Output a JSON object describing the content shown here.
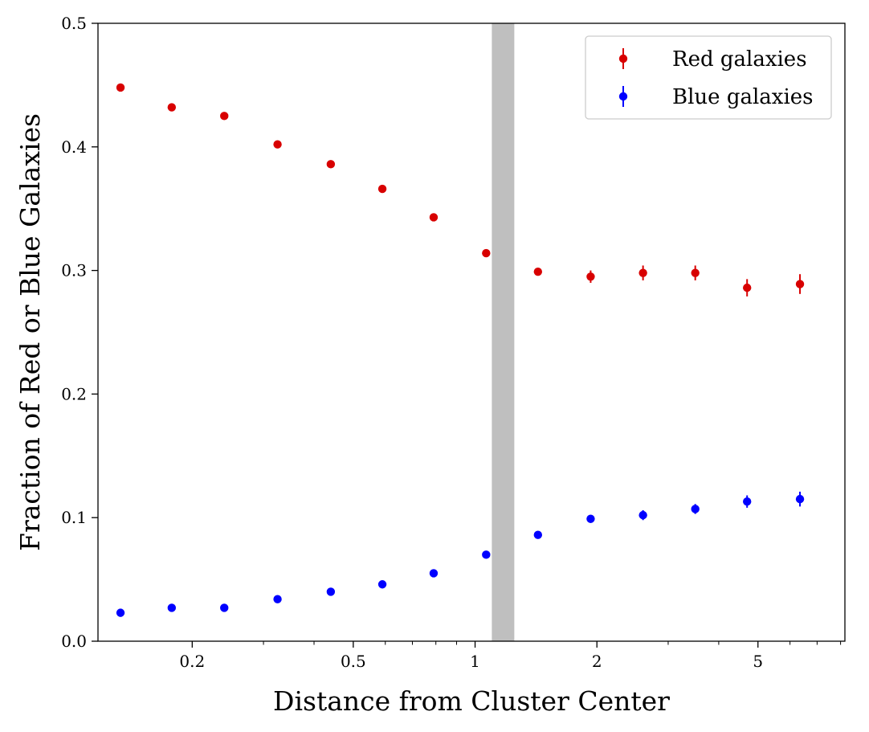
{
  "chart_data": {
    "type": "scatter",
    "title": "",
    "xlabel": "Distance from Cluster Center",
    "ylabel": "Fraction of Red or Blue Galaxies",
    "xscale": "log",
    "xlim": [
      0.117,
      8.2
    ],
    "ylim": [
      0,
      0.5
    ],
    "xticks": [
      {
        "value": 0.2,
        "label": "0.2"
      },
      {
        "value": 0.5,
        "label": "0.5"
      },
      {
        "value": 1,
        "label": "1"
      },
      {
        "value": 2,
        "label": "2"
      },
      {
        "value": 5,
        "label": "5"
      }
    ],
    "yticks": [
      {
        "value": 0.0,
        "label": "0.0"
      },
      {
        "value": 0.1,
        "label": "0.1"
      },
      {
        "value": 0.2,
        "label": "0.2"
      },
      {
        "value": 0.3,
        "label": "0.3"
      },
      {
        "value": 0.4,
        "label": "0.4"
      },
      {
        "value": 0.5,
        "label": "0.5"
      }
    ],
    "shaded_band": {
      "x_start": 1.1,
      "x_end": 1.25,
      "color": "#bfbfbf"
    },
    "legend": {
      "position": "top-right"
    },
    "series": [
      {
        "name": "Red galaxies",
        "color": "#d80000",
        "x": [
          0.133,
          0.178,
          0.24,
          0.325,
          0.44,
          0.59,
          0.79,
          1.065,
          1.43,
          1.93,
          2.6,
          3.5,
          4.7,
          6.35
        ],
        "y": [
          0.448,
          0.432,
          0.425,
          0.402,
          0.386,
          0.366,
          0.343,
          0.314,
          0.299,
          0.295,
          0.298,
          0.298,
          0.286,
          0.289
        ],
        "yerr": [
          0.003,
          0.003,
          0.003,
          0.002,
          0.002,
          0.002,
          0.002,
          0.002,
          0.003,
          0.005,
          0.006,
          0.006,
          0.007,
          0.008
        ]
      },
      {
        "name": "Blue galaxies",
        "color": "#0000ff",
        "x": [
          0.133,
          0.178,
          0.24,
          0.325,
          0.44,
          0.59,
          0.79,
          1.065,
          1.43,
          1.93,
          2.6,
          3.5,
          4.7,
          6.35
        ],
        "y": [
          0.023,
          0.027,
          0.027,
          0.034,
          0.04,
          0.046,
          0.055,
          0.07,
          0.086,
          0.099,
          0.102,
          0.107,
          0.113,
          0.115
        ],
        "yerr": [
          0.001,
          0.001,
          0.001,
          0.001,
          0.001,
          0.001,
          0.001,
          0.001,
          0.002,
          0.003,
          0.004,
          0.004,
          0.005,
          0.006
        ]
      }
    ]
  }
}
